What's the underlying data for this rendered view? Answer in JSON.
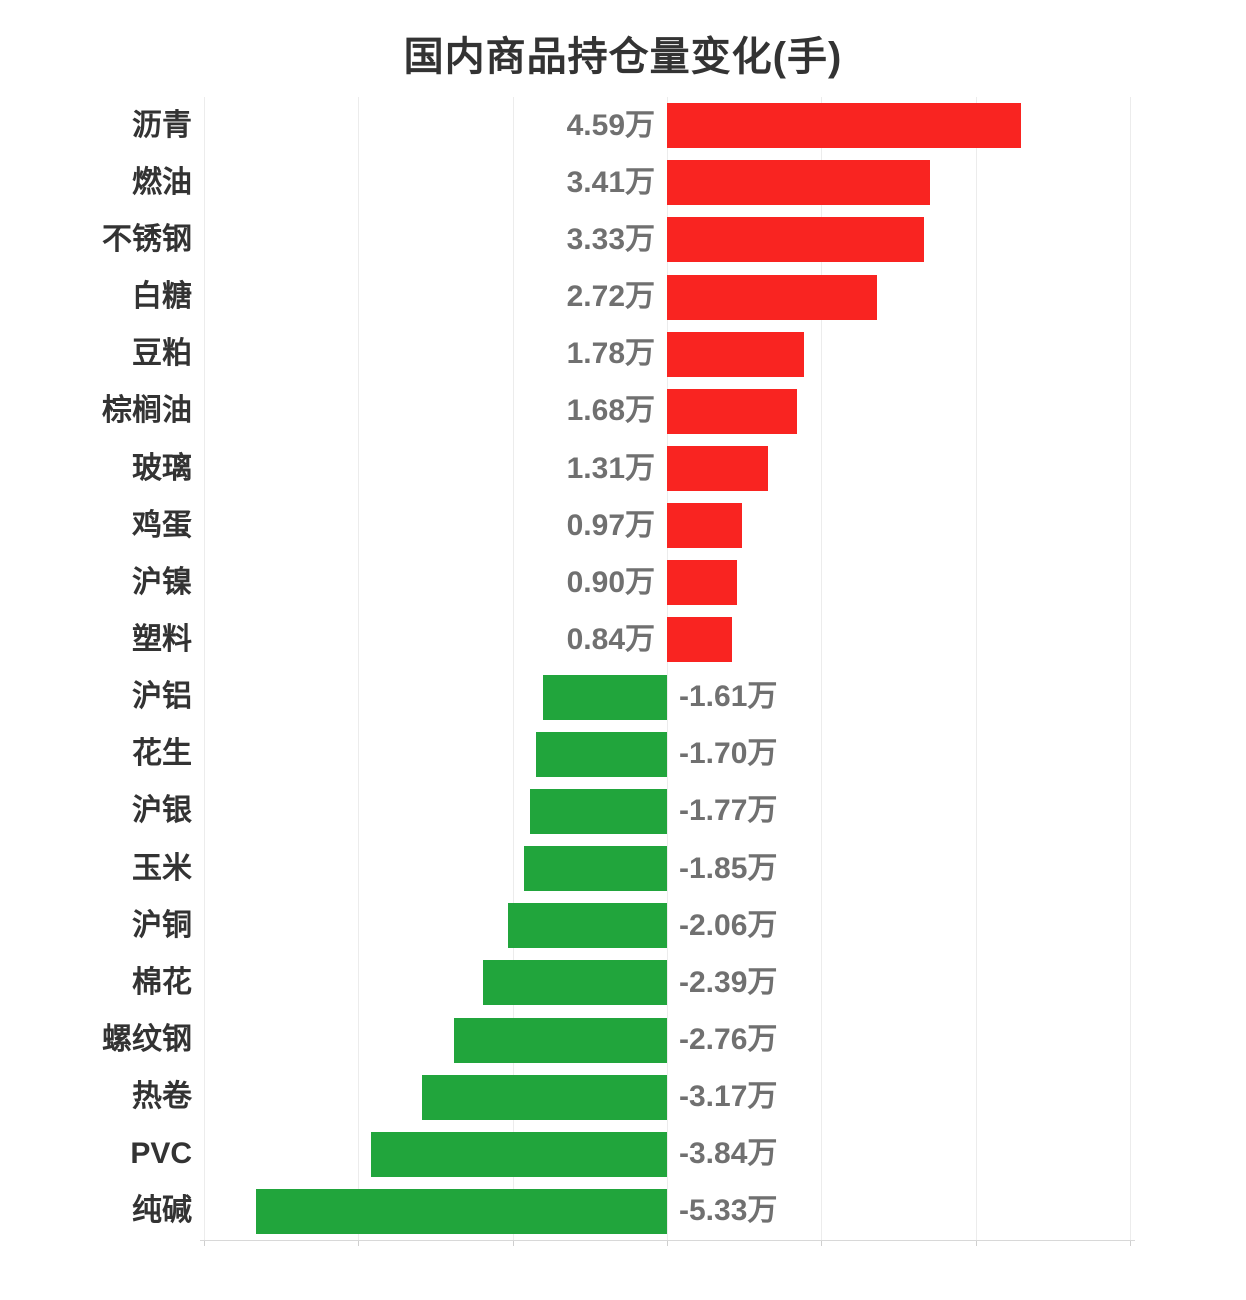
{
  "chart_data": {
    "type": "bar",
    "orientation": "horizontal",
    "title": "国内商品持仓量变化(手)",
    "unit": "万",
    "categories": [
      "沥青",
      "燃油",
      "不锈钢",
      "白糖",
      "豆粕",
      "棕榈油",
      "玻璃",
      "鸡蛋",
      "沪镍",
      "塑料",
      "沪铝",
      "花生",
      "沪银",
      "玉米",
      "沪铜",
      "棉花",
      "螺纹钢",
      "热卷",
      "PVC",
      "纯碱"
    ],
    "values": [
      4.59,
      3.41,
      3.33,
      2.72,
      1.78,
      1.68,
      1.31,
      0.97,
      0.9,
      0.84,
      -1.61,
      -1.7,
      -1.77,
      -1.85,
      -2.06,
      -2.39,
      -2.76,
      -3.17,
      -3.84,
      -5.33
    ],
    "value_labels": [
      "4.59万",
      "3.41万",
      "3.33万",
      "2.72万",
      "1.78万",
      "1.68万",
      "1.31万",
      "0.97万",
      "0.90万",
      "0.84万",
      "-1.61万",
      "-1.70万",
      "-1.77万",
      "-1.85万",
      "-2.06万",
      "-2.39万",
      "-2.76万",
      "-3.17万",
      "-3.84万",
      "-5.33万"
    ],
    "xlabel": "",
    "ylabel": "",
    "xlim": [
      -6,
      6
    ],
    "x_tick_step": 2,
    "grid": true,
    "legend": "none",
    "colors": {
      "positive_bar": "#f92421",
      "negative_bar": "#21a53c",
      "gridline": "#ececec",
      "axis_line": "#d8d8d8",
      "category_label": "#333333",
      "value_label": "#707070",
      "title": "#333333"
    }
  }
}
